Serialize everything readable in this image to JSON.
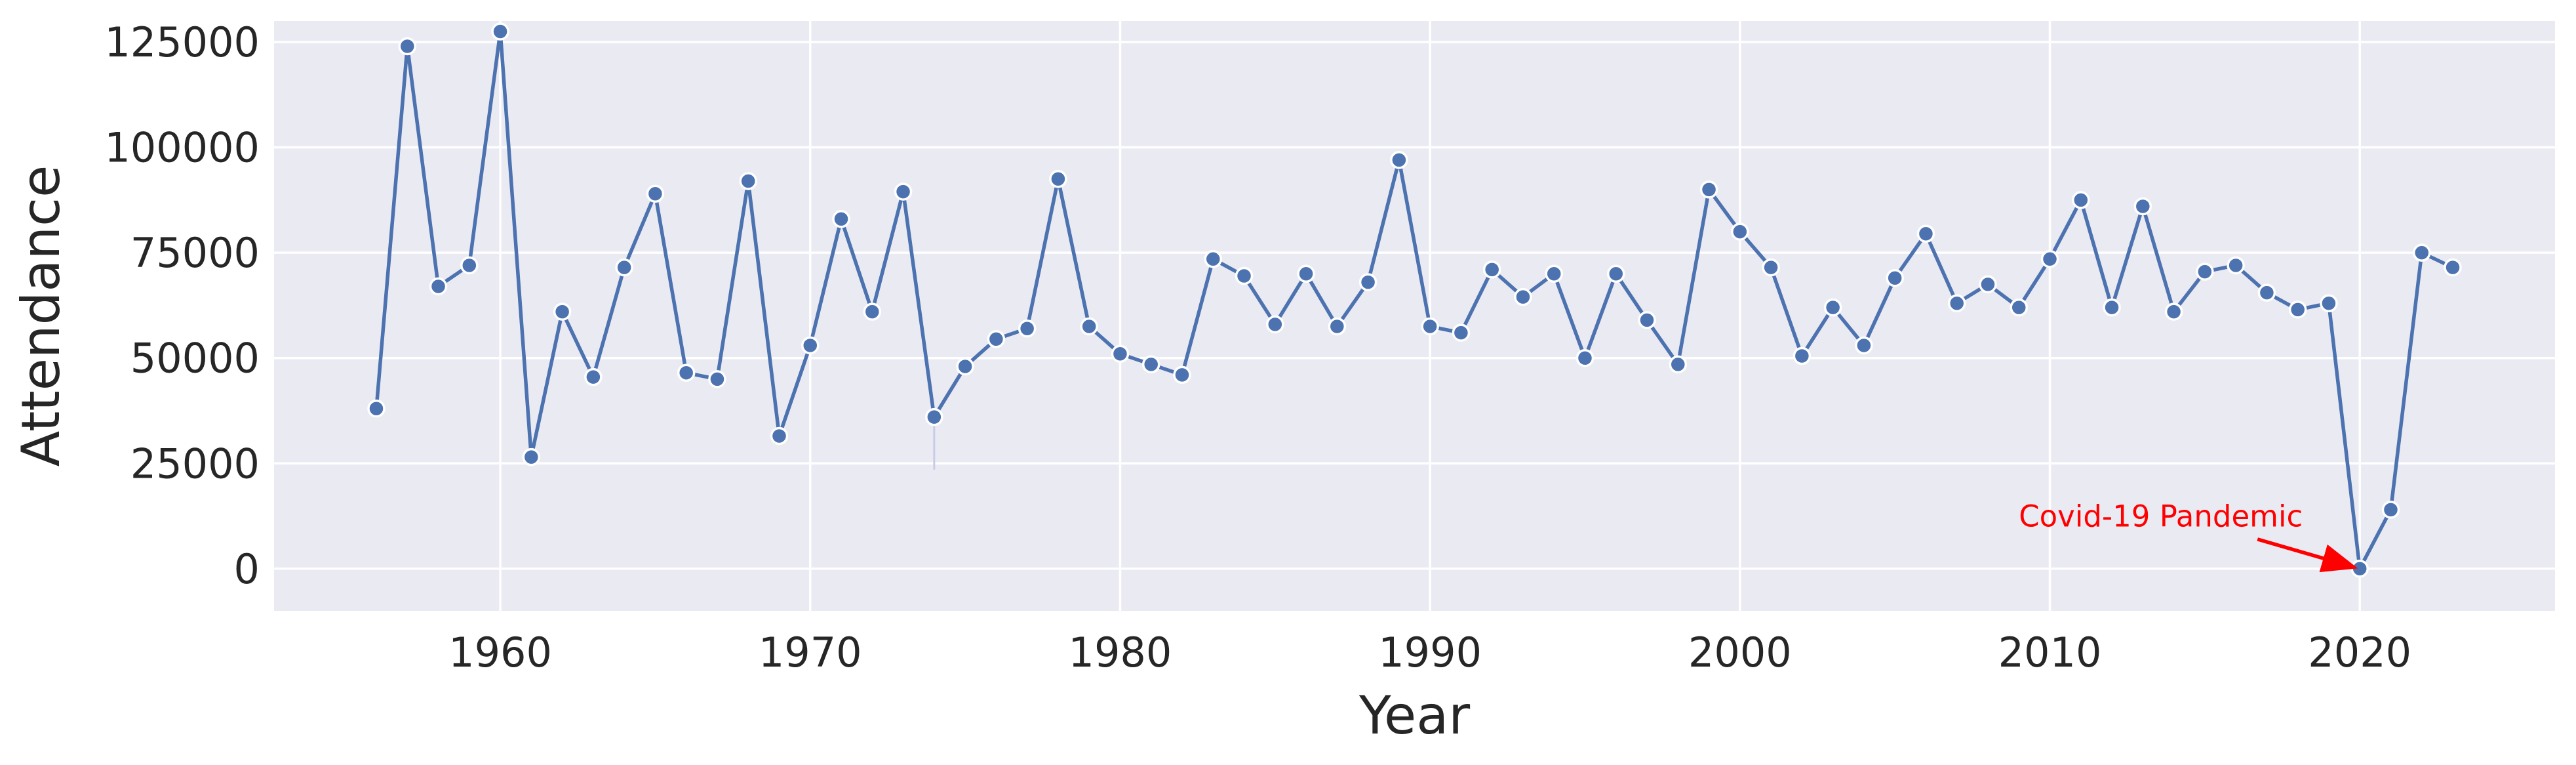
{
  "chart_data": {
    "type": "line",
    "title": "",
    "xlabel": "Year",
    "ylabel": "Attendance",
    "xlim": [
      1952.7,
      1926.3
    ],
    "ylim": [
      -10000,
      130000
    ],
    "xticks": [
      1960,
      1970,
      1980,
      1990,
      2000,
      2010,
      2020
    ],
    "yticks": [
      0,
      25000,
      50000,
      75000,
      100000,
      125000
    ],
    "grid": true,
    "legend": "none",
    "series": [
      {
        "color": "#4c72b0",
        "x": [
          1956,
          1957,
          1958,
          1959,
          1960,
          1961,
          1962,
          1963,
          1964,
          1965,
          1966,
          1967,
          1968,
          1969,
          1970,
          1971,
          1972,
          1973,
          1974,
          1975,
          1976,
          1977,
          1978,
          1979,
          1980,
          1981,
          1982,
          1983,
          1984,
          1985,
          1986,
          1987,
          1988,
          1989,
          1990,
          1991,
          1992,
          1993,
          1994,
          1995,
          1996,
          1997,
          1998,
          1999,
          2000,
          2001,
          2002,
          2003,
          2004,
          2005,
          2006,
          2007,
          2008,
          2009,
          2010,
          2011,
          2012,
          2013,
          2014,
          2015,
          2016,
          2017,
          2018,
          2019,
          2020,
          2021,
          2022,
          2023
        ],
        "y": [
          38000,
          124000,
          67000,
          72000,
          127500,
          26500,
          61000,
          45500,
          71500,
          89000,
          46500,
          45000,
          92000,
          31500,
          53000,
          83000,
          61000,
          89500,
          36000,
          48000,
          54500,
          57000,
          92500,
          57500,
          51000,
          48500,
          46000,
          73500,
          69500,
          58000,
          70000,
          57500,
          68000,
          97000,
          57500,
          56000,
          71000,
          64500,
          70000,
          50000,
          70000,
          59000,
          48500,
          90000,
          80000,
          71500,
          50500,
          62000,
          53000,
          69000,
          79500,
          63000,
          67500,
          62000,
          73500,
          87500,
          62000,
          86000,
          61000,
          70500,
          72000,
          65500,
          61500,
          63000,
          0,
          14000,
          75000,
          71500
        ]
      }
    ],
    "error_bar": {
      "x": 1974,
      "low": 23500,
      "high": 36000,
      "color": "#c8cde6"
    },
    "annotations": [
      {
        "text": "Covid-19 Pandemic",
        "color": "#ff0000",
        "text_x": 2009,
        "text_y": 10000,
        "arrow_from_x": 2016.7,
        "arrow_from_y": 7000,
        "arrow_to_x": 2020,
        "arrow_to_y": 0
      }
    ],
    "style": {
      "background": "#eaeaf2"
    }
  }
}
